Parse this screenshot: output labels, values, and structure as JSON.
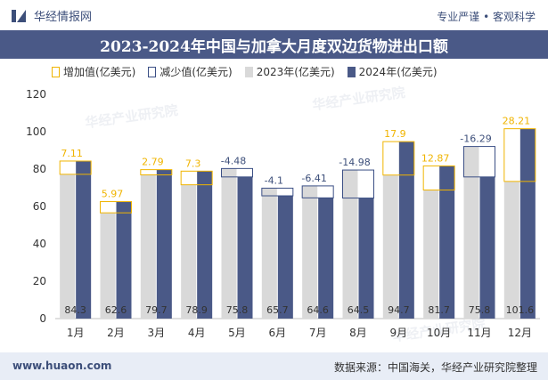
{
  "header": {
    "brand": "华经情报网",
    "slogan": "专业严谨 • 客观科学"
  },
  "footer": {
    "url": "www.huaon.com",
    "source": "数据来源：中国海关，华经产业研究院整理"
  },
  "watermark": "华经产业研究院",
  "colors": {
    "series_2023": "#d9d9d9",
    "series_2024": "#4a5987",
    "increase_outline": "#f0b400",
    "decrease_outline": "#3b4f85",
    "increase_label": "#f0b400",
    "decrease_label": "#3d4f7a",
    "title_bar": "#4a5987"
  },
  "chart_data": {
    "type": "bar",
    "title": "2023-2024年中国与加拿大月度双边货物进出口额",
    "categories": [
      "1月",
      "2月",
      "3月",
      "4月",
      "5月",
      "6月",
      "7月",
      "8月",
      "9月",
      "10月",
      "11月",
      "12月"
    ],
    "series": [
      {
        "name": "2023年(亿美元)",
        "values": [
          77.2,
          56.6,
          76.9,
          71.6,
          80.3,
          69.8,
          71.0,
          79.5,
          76.8,
          68.8,
          92.1,
          73.4
        ]
      },
      {
        "name": "2024年(亿美元)",
        "values": [
          84.3,
          62.6,
          79.7,
          78.9,
          75.8,
          65.7,
          64.6,
          64.5,
          94.7,
          81.7,
          75.8,
          101.6
        ]
      }
    ],
    "change": {
      "increase_name": "增加值(亿美元)",
      "decrease_name": "减少值(亿美元)",
      "values": [
        7.11,
        5.97,
        2.79,
        7.3,
        -4.48,
        -4.1,
        -6.41,
        -14.98,
        17.9,
        12.87,
        -16.29,
        28.21
      ],
      "labels": [
        "7.11",
        "5.97",
        "2.79",
        "7.3",
        "-4.48",
        "-4.1",
        "-6.41",
        "-14.98",
        "17.9",
        "12.87",
        "-16.29",
        "28.21"
      ]
    },
    "value_labels_2024": [
      "84.3",
      "62.6",
      "79.7",
      "78.9",
      "75.8",
      "65.7",
      "64.6",
      "64.5",
      "94.7",
      "81.7",
      "75.8",
      "101.6"
    ],
    "ylim": [
      0,
      120
    ],
    "yticks": [
      0,
      20,
      40,
      60,
      80,
      100,
      120
    ],
    "grid": false,
    "legend_position": "top-left"
  }
}
